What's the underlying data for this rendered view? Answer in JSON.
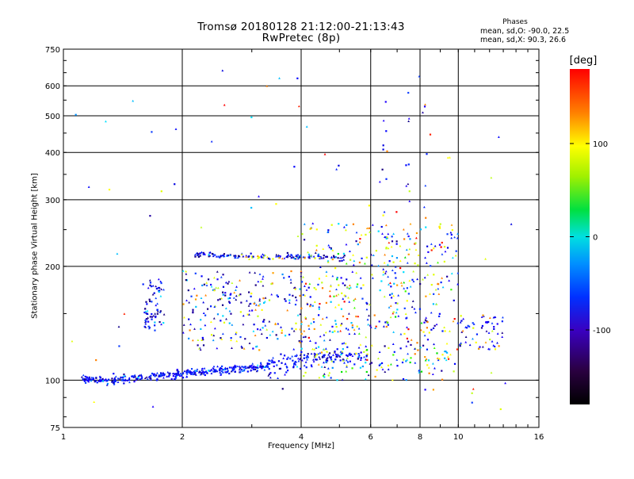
{
  "header": {
    "title_line1": "Tromsø 20180128 21:12:00-21:13:43",
    "title_line2": "RwPretec (8p)",
    "phases_title": "Phases",
    "phases_o": "mean, sd,O: -90.0, 22.5",
    "phases_x": "mean, sd,X:  90.3, 26.6"
  },
  "chart_data": {
    "type": "scatter",
    "title": "Tromsø 20180128 21:12:00-21:13:43",
    "subtitle": "RwPretec (8p)",
    "xlabel": "Frequency [MHz]",
    "ylabel": "Stationary phase Virtual Height [km]",
    "x_scale": "log",
    "y_scale": "log",
    "xlim": [
      1,
      16
    ],
    "ylim": [
      75,
      750
    ],
    "x_ticks": [
      1,
      2,
      4,
      6,
      8,
      10,
      16
    ],
    "x_tick_labels": [
      "1",
      "2",
      "4",
      "6",
      "8",
      "10",
      "16"
    ],
    "y_ticks": [
      75,
      100,
      200,
      300,
      400,
      500,
      600,
      750
    ],
    "y_tick_labels": [
      "75",
      "100",
      "200",
      "300",
      "400",
      "500",
      "600",
      "750"
    ],
    "grid": true,
    "colorbar": {
      "label": "[deg]",
      "range": [
        -180,
        180
      ],
      "ticks": [
        100,
        0,
        -100
      ],
      "tick_labels": [
        "100",
        "0",
        "-100"
      ]
    },
    "trace_O_lower": {
      "x": [
        1.1,
        1.2,
        1.3,
        1.45,
        1.6,
        1.8,
        2.0,
        2.2,
        2.5,
        2.8,
        3.1,
        3.4,
        3.7,
        4.0,
        4.3,
        4.7,
        5.1,
        5.5,
        5.9
      ],
      "y": [
        101,
        100.5,
        100,
        101,
        102,
        103,
        104,
        105,
        106,
        107,
        108,
        109,
        111,
        113,
        114,
        115,
        116,
        116,
        117
      ]
    },
    "trace_F2_upper": {
      "x": [
        2.15,
        2.4,
        2.7,
        3.0,
        3.3,
        3.6,
        4.0,
        4.5,
        5.0,
        5.3
      ],
      "y": [
        215,
        214,
        213,
        213,
        212,
        212,
        212,
        212,
        211,
        211
      ]
    },
    "cluster_E": {
      "x": [
        1.6,
        1.8
      ],
      "y": [
        135,
        185
      ]
    },
    "cluster_mid": {
      "x": [
        2.0,
        4.0
      ],
      "y": [
        120,
        195
      ]
    },
    "cluster_spread": {
      "x": [
        4.0,
        10.0
      ],
      "y": [
        100,
        260
      ]
    },
    "cluster_high_f": {
      "x": [
        10.0,
        13.0
      ],
      "y": [
        120,
        150
      ]
    }
  }
}
